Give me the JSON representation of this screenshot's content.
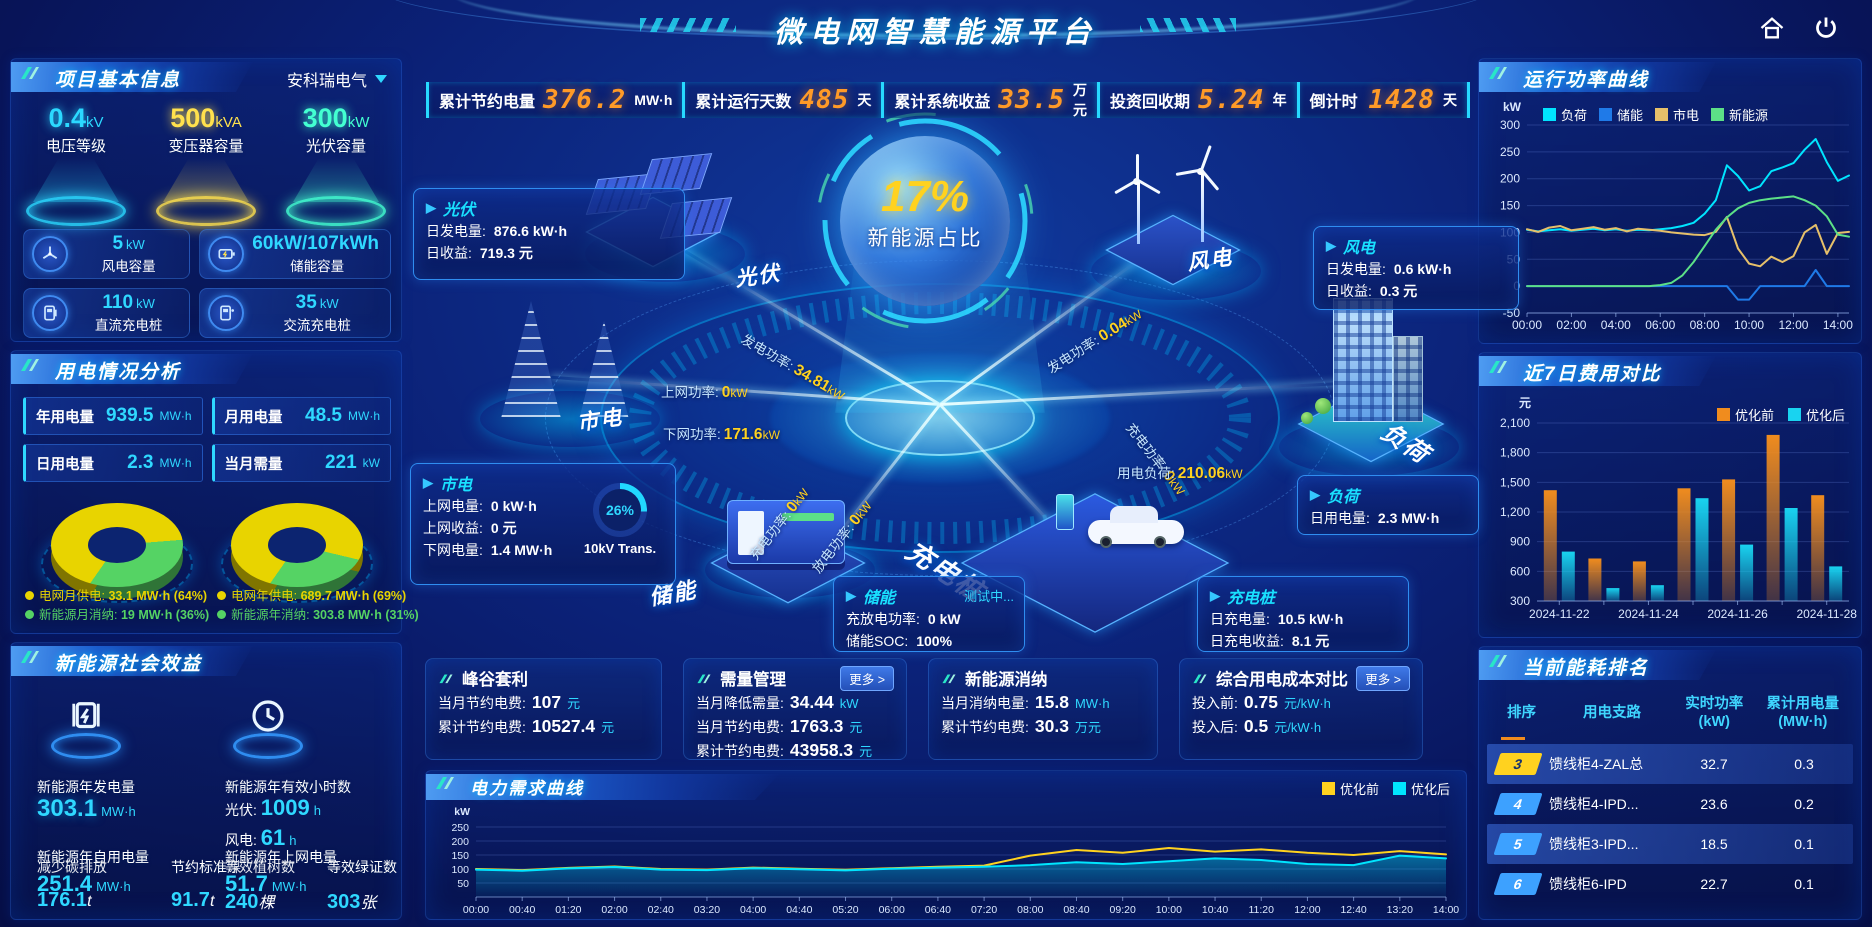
{
  "header": {
    "title": "微电网智慧能源平台"
  },
  "stats": [
    {
      "label": "累计节约电量",
      "value": "376.2",
      "unit": "MW·h"
    },
    {
      "label": "累计运行天数",
      "value": "485",
      "unit": "天"
    },
    {
      "label": "累计系统收益",
      "value": "33.5",
      "unit": "万元"
    },
    {
      "label": "投资回收期",
      "value": "5.24",
      "unit": "年"
    },
    {
      "label": "倒计时",
      "value": "1428",
      "unit": "天"
    }
  ],
  "project": {
    "title": "项目基本信息",
    "company": "安科瑞电气",
    "gauges": [
      {
        "value": "0.4",
        "unit": "kV",
        "label": "电压等级",
        "color": "#2bd9ff"
      },
      {
        "value": "500",
        "unit": "kVA",
        "label": "变压器容量",
        "color": "#ffe14d"
      },
      {
        "value": "300",
        "unit": "kW",
        "label": "光伏容量",
        "color": "#43ffd1"
      }
    ],
    "cards": [
      {
        "value": "5",
        "unit": "kW",
        "label": "风电容量"
      },
      {
        "value": "60kW/107kWh",
        "unit": "",
        "label": "储能容量"
      },
      {
        "value": "110",
        "unit": "kW",
        "label": "直流充电桩"
      },
      {
        "value": "35",
        "unit": "kW",
        "label": "交流充电桩"
      }
    ]
  },
  "usage": {
    "title": "用电情况分析",
    "stats": [
      {
        "label": "年用电量",
        "value": "939.5",
        "unit": "MW·h"
      },
      {
        "label": "月用电量",
        "value": "48.5",
        "unit": "MW·h"
      },
      {
        "label": "日用电量",
        "value": "2.3",
        "unit": "MW·h"
      },
      {
        "label": "当月需量",
        "value": "221",
        "unit": "kW"
      }
    ],
    "donuts": [
      {
        "main_pct": 64,
        "legend": [
          {
            "label": "电网月供电:",
            "value": "33.1 MW·h (64%)",
            "color": "#e8d400"
          },
          {
            "label": "新能源月消纳:",
            "value": "19 MW·h (36%)",
            "color": "#55d364"
          }
        ]
      },
      {
        "main_pct": 69,
        "legend": [
          {
            "label": "电网年供电:",
            "value": "689.7 MW·h (69%)",
            "color": "#e8d400"
          },
          {
            "label": "新能源年消纳:",
            "value": "303.8 MW·h (31%)",
            "color": "#55d364"
          }
        ]
      }
    ]
  },
  "benefits": {
    "title": "新能源社会效益",
    "gen": {
      "label": "新能源年发电量",
      "value": "303.1",
      "unit": "MW·h"
    },
    "hours": {
      "label": "新能源年有效小时数",
      "pv_k": "光伏:",
      "pv_v": "1009",
      "pv_u": "h",
      "wind_k": "风电:",
      "wind_v": "61",
      "wind_u": "h"
    },
    "self_use": {
      "label": "新能源年自用电量",
      "value": "251.4",
      "unit": "MW·h"
    },
    "to_grid": {
      "label": "新能源年上网电量",
      "value": "51.7",
      "unit": "MW·h"
    },
    "co2": {
      "label": "减少碳排放",
      "value": "176.1",
      "unit": "t"
    },
    "coal": {
      "label": "节约标准煤",
      "value": "91.7",
      "unit": "t"
    },
    "trees": {
      "label": "等效植树数",
      "value": "240",
      "unit": "棵"
    },
    "certs": {
      "label": "等效绿证数",
      "value": "303",
      "unit": "张"
    }
  },
  "scene": {
    "center_value": "17%",
    "center_label": "新能源占比",
    "nodes": {
      "pv": "光伏",
      "wind": "风电",
      "grid": "市电",
      "storage": "储能",
      "charger": "充电桩",
      "load": "负荷"
    },
    "flows": [
      {
        "label": "发电功率:",
        "value": "34.81",
        "unit": "kW"
      },
      {
        "label": "上网功率:",
        "value": "0",
        "unit": "kW"
      },
      {
        "label": "下网功率:",
        "value": "171.6",
        "unit": "kW"
      },
      {
        "label": "充电功率:",
        "value": "0",
        "unit": "kW"
      },
      {
        "label": "放电功率:",
        "value": "0",
        "unit": "kW"
      },
      {
        "label": "充电功率:",
        "value": "0",
        "unit": "kW"
      },
      {
        "label": "用电负荷:",
        "value": "210.06",
        "unit": "kW"
      },
      {
        "label": "发电功率:",
        "value": "0.04",
        "unit": "kW"
      }
    ],
    "boxes": {
      "pv": {
        "title": "光伏",
        "rows": [
          [
            "日发电量:",
            "876.6 kW·h"
          ],
          [
            "日收益:",
            "719.3 元"
          ]
        ]
      },
      "wind": {
        "title": "风电",
        "rows": [
          [
            "日发电量:",
            "0.6 kW·h"
          ],
          [
            "日收益:",
            "0.3 元"
          ]
        ]
      },
      "grid": {
        "title": "市电",
        "rows": [
          [
            "上网电量:",
            "0 kW·h"
          ],
          [
            "上网收益:",
            "0 元"
          ],
          [
            "下网电量:",
            "1.4 MW·h"
          ]
        ],
        "gauge_value": "26%",
        "gauge_label": "10kV Trans."
      },
      "storage": {
        "title": "储能",
        "status": "测试中...",
        "rows": [
          [
            "充放电功率:",
            "0 kW"
          ],
          [
            "储能SOC:",
            "100%"
          ]
        ]
      },
      "charger": {
        "title": "充电桩",
        "rows": [
          [
            "日充电量:",
            "10.5 kW·h"
          ],
          [
            "日充电收益:",
            "8.1 元"
          ]
        ]
      },
      "load": {
        "title": "负荷",
        "rows": [
          [
            "日用电量:",
            "2.3 MW·h"
          ]
        ]
      }
    }
  },
  "cards": [
    {
      "title": "峰谷套利",
      "more": "",
      "rows": [
        [
          "当月节约电费:",
          "107",
          "元"
        ],
        [
          "累计节约电费:",
          "10527.4",
          "元"
        ]
      ]
    },
    {
      "title": "需量管理",
      "more": "更多 >",
      "rows": [
        [
          "当月降低需量:",
          "34.44",
          "kW"
        ],
        [
          "当月节约电费:",
          "1763.3",
          "元"
        ],
        [
          "累计节约电费:",
          "43958.3",
          "元"
        ]
      ]
    },
    {
      "title": "新能源消纳",
      "more": "",
      "rows": [
        [
          "当月消纳电量:",
          "15.8",
          "MW·h"
        ],
        [
          "累计节约电费:",
          "30.3",
          "万元"
        ]
      ]
    },
    {
      "title": "综合用电成本对比",
      "more": "更多 >",
      "rows": [
        [
          "投入前:",
          "0.75",
          "元/kW·h"
        ],
        [
          "投入后:",
          "0.5",
          "元/kW·h"
        ]
      ]
    }
  ],
  "ranking": {
    "title": "当前能耗排名",
    "headers": [
      "排序",
      "用电支路",
      "实时功率\n(kW)",
      "累计用电量\n(MW·h)"
    ],
    "rows": [
      {
        "rank": "3",
        "branch": "馈线柜4-ZAL总",
        "power": "32.7",
        "energy": "0.3",
        "badge": "#ffd21f",
        "hl": true
      },
      {
        "rank": "4",
        "branch": "馈线柜4-IPD...",
        "power": "23.6",
        "energy": "0.2",
        "badge": "#3da1ff",
        "hl": false
      },
      {
        "rank": "5",
        "branch": "馈线柜3-IPD...",
        "power": "18.5",
        "energy": "0.1",
        "badge": "#3da1ff",
        "hl": true
      },
      {
        "rank": "6",
        "branch": "馈线柜6-IPD",
        "power": "22.7",
        "energy": "0.1",
        "badge": "#3da1ff",
        "hl": false
      }
    ]
  },
  "panel_titles": {
    "power_curve": "运行功率曲线",
    "cost_compare": "近7日费用对比",
    "demand_curve": "电力需求曲线"
  },
  "chart_data": [
    {
      "id": "power_curve",
      "type": "line",
      "title": "运行功率曲线",
      "ylabel": "kW",
      "ylim": [
        -50,
        300
      ],
      "ytick_step": 50,
      "x_tick_every": 4,
      "legend_pos": "top",
      "x": [
        "00:00",
        "00:30",
        "01:00",
        "01:30",
        "02:00",
        "02:30",
        "03:00",
        "03:30",
        "04:00",
        "04:30",
        "05:00",
        "05:30",
        "06:00",
        "06:30",
        "07:00",
        "07:30",
        "08:00",
        "08:30",
        "09:00",
        "09:30",
        "10:00",
        "10:30",
        "11:00",
        "11:30",
        "12:00",
        "12:30",
        "13:00",
        "13:30",
        "14:00",
        "14:30"
      ],
      "series": [
        {
          "name": "负荷",
          "color": "#00e5ff",
          "values": [
            105,
            102,
            104,
            106,
            103,
            105,
            107,
            104,
            106,
            103,
            105,
            104,
            106,
            108,
            112,
            118,
            135,
            160,
            225,
            205,
            178,
            186,
            214,
            221,
            229,
            254,
            274,
            231,
            196,
            206
          ]
        },
        {
          "name": "储能",
          "color": "#1f7ae8",
          "values": [
            0,
            0,
            0,
            0,
            0,
            0,
            0,
            0,
            0,
            0,
            0,
            0,
            0,
            0,
            0,
            0,
            0,
            0,
            0,
            -25,
            -25,
            0,
            0,
            0,
            0,
            0,
            30,
            0,
            0,
            0
          ]
        },
        {
          "name": "市电",
          "color": "#e6c06a",
          "values": [
            106,
            101,
            109,
            112,
            104,
            107,
            110,
            105,
            108,
            102,
            107,
            105,
            103,
            100,
            98,
            96,
            95,
            101,
            129,
            70,
            42,
            37,
            55,
            45,
            56,
            100,
            114,
            60,
            99,
            101
          ]
        },
        {
          "name": "新能源",
          "color": "#5ce087",
          "values": [
            0,
            0,
            0,
            0,
            0,
            0,
            0,
            0,
            0,
            0,
            0,
            0,
            2,
            6,
            20,
            45,
            75,
            105,
            128,
            145,
            155,
            160,
            163,
            165,
            167,
            160,
            150,
            130,
            96,
            92
          ]
        }
      ]
    },
    {
      "id": "cost_compare",
      "type": "bar",
      "title": "近7日费用对比",
      "ylabel": "元",
      "ylim": [
        300,
        2100
      ],
      "ytick_step": 300,
      "x_tick_every": 2,
      "legend_pos": "top-right",
      "categories": [
        "2024-11-22",
        "2024-11-23",
        "2024-11-24",
        "2024-11-25",
        "2024-11-26",
        "2024-11-27",
        "2024-11-28"
      ],
      "series": [
        {
          "name": "优化前",
          "color": "#f08c1e",
          "values": [
            1420,
            730,
            700,
            1440,
            1530,
            1980,
            1370
          ]
        },
        {
          "name": "优化后",
          "color": "#19d3f0",
          "values": [
            800,
            430,
            460,
            1340,
            870,
            1240,
            650
          ]
        }
      ]
    },
    {
      "id": "demand_curve",
      "type": "line",
      "title": "电力需求曲线",
      "ylabel": "kW",
      "ylim": [
        0,
        300
      ],
      "yticks": [
        50,
        100,
        150,
        200,
        250
      ],
      "x_tick_every": 1,
      "legend_pos": "top-right",
      "x": [
        "00:00",
        "00:40",
        "01:20",
        "02:00",
        "02:40",
        "03:20",
        "04:00",
        "04:40",
        "05:20",
        "06:00",
        "06:40",
        "07:20",
        "08:00",
        "08:40",
        "09:20",
        "10:00",
        "10:40",
        "11:20",
        "12:00",
        "12:40",
        "13:20",
        "14:00"
      ],
      "series": [
        {
          "name": "优化前",
          "color": "#ffd21f",
          "values": [
            100,
            96,
            104,
            109,
            100,
            98,
            105,
            101,
            97,
            103,
            108,
            112,
            148,
            168,
            158,
            175,
            162,
            170,
            158,
            150,
            164,
            152
          ]
        },
        {
          "name": "优化后",
          "color": "#00e5ff",
          "area": true,
          "values": [
            98,
            94,
            102,
            107,
            98,
            96,
            103,
            99,
            95,
            101,
            105,
            108,
            114,
            124,
            118,
            128,
            138,
            132,
            118,
            114,
            148,
            138
          ]
        }
      ]
    }
  ]
}
